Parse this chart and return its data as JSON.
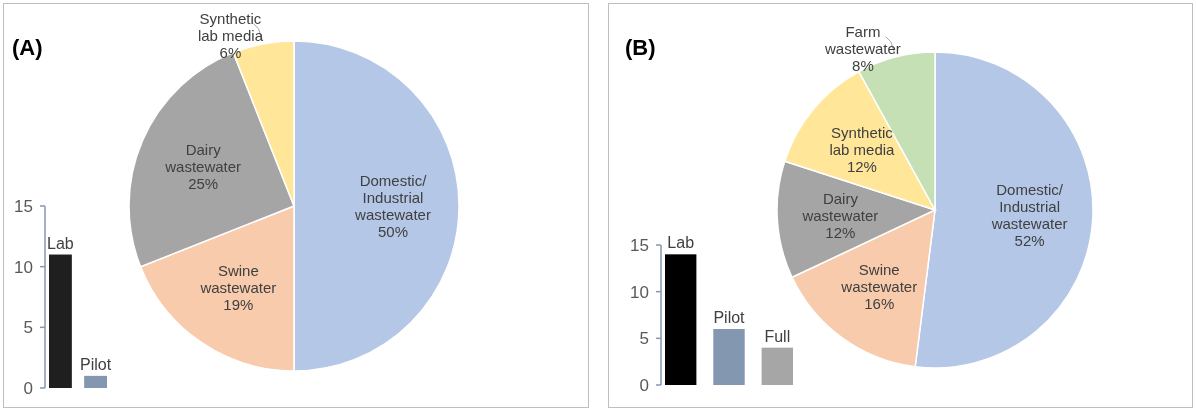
{
  "chart_data": [
    {
      "type": "pie",
      "title": "(A)",
      "categories": [
        "Domestic/\nIndustrial\nwastewater",
        "Swine\nwastewater",
        "Dairy\nwastewater",
        "Synthetic\nlab media"
      ],
      "values": [
        50,
        19,
        25,
        6
      ],
      "value_labels": [
        "50%",
        "19%",
        "25%",
        "6%"
      ],
      "colors": [
        "#b4c7e7",
        "#f8cbad",
        "#a5a5a5",
        "#ffe699"
      ]
    },
    {
      "type": "bar",
      "categories": [
        "Lab",
        "Pilot"
      ],
      "values": [
        11,
        1
      ],
      "colors": [
        "#1f1f1f",
        "#8497b0"
      ],
      "ylim": [
        0,
        15
      ],
      "yticks": [
        0,
        5,
        10,
        15
      ]
    },
    {
      "type": "pie",
      "title": "(B)",
      "categories": [
        "Domestic/\nIndustrial\nwastewater",
        "Swine\nwastewater",
        "Dairy\nwastewater",
        "Synthetic\nlab media",
        "Farm\nwastewater"
      ],
      "values": [
        52,
        16,
        12,
        12,
        8
      ],
      "value_labels": [
        "52%",
        "16%",
        "12%",
        "12%",
        "8%"
      ],
      "colors": [
        "#b4c7e7",
        "#f8cbad",
        "#a5a5a5",
        "#ffe699",
        "#c5e0b4"
      ]
    },
    {
      "type": "bar",
      "categories": [
        "Lab",
        "Pilot",
        "Full"
      ],
      "values": [
        14,
        6,
        4
      ],
      "colors": [
        "#000000",
        "#8497b0",
        "#a6a6a6"
      ],
      "ylim": [
        0,
        15
      ],
      "yticks": [
        0,
        5,
        10,
        15
      ]
    }
  ]
}
